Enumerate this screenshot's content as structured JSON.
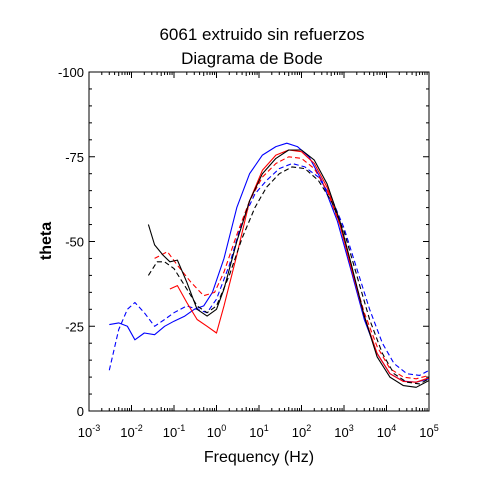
{
  "chart_data": {
    "type": "line",
    "title": "6061 extruido sin refuerzos",
    "subtitle": "Diagrama de Bode",
    "xlabel": "Frequency (Hz)",
    "ylabel": "theta",
    "x_scale": "log",
    "xlim": [
      0.001,
      100000
    ],
    "ylim": [
      0,
      -100
    ],
    "x_ticks": [
      {
        "value": 0.001,
        "base": "10",
        "exp": "-3"
      },
      {
        "value": 0.01,
        "base": "10",
        "exp": "-2"
      },
      {
        "value": 0.1,
        "base": "10",
        "exp": "-1"
      },
      {
        "value": 1,
        "base": "10",
        "exp": "0"
      },
      {
        "value": 10,
        "base": "10",
        "exp": "1"
      },
      {
        "value": 100,
        "base": "10",
        "exp": "2"
      },
      {
        "value": 1000,
        "base": "10",
        "exp": "3"
      },
      {
        "value": 10000,
        "base": "10",
        "exp": "4"
      },
      {
        "value": 100000,
        "base": "10",
        "exp": "5"
      }
    ],
    "y_ticks": [
      {
        "value": 0,
        "label": "0"
      },
      {
        "value": -25,
        "label": "-25"
      },
      {
        "value": -50,
        "label": "-50"
      },
      {
        "value": -75,
        "label": "-75"
      },
      {
        "value": -100,
        "label": "-100"
      }
    ],
    "grid": false,
    "series": [
      {
        "color": "#0000ff",
        "dash": "solid",
        "points": [
          [
            0.003,
            -25.5
          ],
          [
            0.005,
            -26
          ],
          [
            0.008,
            -25
          ],
          [
            0.012,
            -21
          ],
          [
            0.02,
            -23
          ],
          [
            0.035,
            -22.5
          ],
          [
            0.06,
            -25
          ],
          [
            0.1,
            -26.5
          ],
          [
            0.18,
            -28
          ],
          [
            0.3,
            -30
          ],
          [
            0.5,
            -31
          ],
          [
            0.8,
            -35
          ],
          [
            1.5,
            -45
          ],
          [
            3,
            -60
          ],
          [
            6,
            -70
          ],
          [
            12,
            -75.5
          ],
          [
            25,
            -78
          ],
          [
            45,
            -79
          ],
          [
            80,
            -78
          ],
          [
            150,
            -75
          ],
          [
            300,
            -68
          ],
          [
            700,
            -56
          ],
          [
            1500,
            -41
          ],
          [
            3000,
            -27
          ],
          [
            6000,
            -17
          ],
          [
            12000,
            -11
          ],
          [
            25000,
            -8.8
          ],
          [
            50000,
            -8.5
          ],
          [
            100000,
            -9.5
          ]
        ]
      },
      {
        "color": "#0000ff",
        "dash": "dashed",
        "points": [
          [
            0.003,
            -12
          ],
          [
            0.005,
            -24
          ],
          [
            0.008,
            -30
          ],
          [
            0.012,
            -32
          ],
          [
            0.02,
            -29
          ],
          [
            0.035,
            -25
          ],
          [
            0.06,
            -27
          ],
          [
            0.1,
            -29
          ],
          [
            0.2,
            -31
          ],
          [
            0.35,
            -30
          ],
          [
            0.6,
            -29
          ],
          [
            1,
            -33
          ],
          [
            2,
            -43
          ],
          [
            4,
            -56
          ],
          [
            8,
            -64
          ],
          [
            15,
            -68
          ],
          [
            30,
            -71.5
          ],
          [
            60,
            -73
          ],
          [
            120,
            -72
          ],
          [
            250,
            -69
          ],
          [
            500,
            -63
          ],
          [
            1000,
            -54
          ],
          [
            2000,
            -42
          ],
          [
            4000,
            -30
          ],
          [
            8000,
            -20
          ],
          [
            15000,
            -14
          ],
          [
            30000,
            -11
          ],
          [
            60000,
            -10.5
          ],
          [
            100000,
            -12
          ]
        ]
      },
      {
        "color": "#ff0000",
        "dash": "solid",
        "points": [
          [
            0.08,
            -36
          ],
          [
            0.12,
            -37
          ],
          [
            0.2,
            -32
          ],
          [
            0.35,
            -27
          ],
          [
            0.6,
            -25
          ],
          [
            1,
            -23
          ],
          [
            1.5,
            -31
          ],
          [
            3,
            -46
          ],
          [
            6,
            -62
          ],
          [
            12,
            -71
          ],
          [
            25,
            -75.5
          ],
          [
            50,
            -77
          ],
          [
            100,
            -76.5
          ],
          [
            200,
            -73
          ],
          [
            400,
            -66
          ],
          [
            800,
            -55
          ],
          [
            1500,
            -42
          ],
          [
            3000,
            -28
          ],
          [
            6000,
            -17
          ],
          [
            12000,
            -11
          ],
          [
            25000,
            -8.7
          ],
          [
            50000,
            -8.5
          ],
          [
            100000,
            -9.8
          ]
        ]
      },
      {
        "color": "#ff0000",
        "dash": "dashed",
        "points": [
          [
            0.035,
            -45
          ],
          [
            0.07,
            -47
          ],
          [
            0.12,
            -43
          ],
          [
            0.25,
            -38
          ],
          [
            0.5,
            -34
          ],
          [
            0.9,
            -35
          ],
          [
            1.5,
            -41
          ],
          [
            3,
            -52
          ],
          [
            6,
            -62
          ],
          [
            12,
            -69
          ],
          [
            25,
            -73
          ],
          [
            50,
            -75
          ],
          [
            100,
            -74.5
          ],
          [
            200,
            -71.5
          ],
          [
            400,
            -65
          ],
          [
            800,
            -55
          ],
          [
            1500,
            -42
          ],
          [
            3000,
            -29
          ],
          [
            6000,
            -19
          ],
          [
            12000,
            -12.5
          ],
          [
            25000,
            -10
          ],
          [
            50000,
            -9.5
          ],
          [
            100000,
            -10.5
          ]
        ]
      },
      {
        "color": "#000000",
        "dash": "solid",
        "points": [
          [
            0.025,
            -55
          ],
          [
            0.035,
            -49
          ],
          [
            0.055,
            -46
          ],
          [
            0.08,
            -44
          ],
          [
            0.12,
            -44.5
          ],
          [
            0.2,
            -38
          ],
          [
            0.35,
            -30
          ],
          [
            0.6,
            -28
          ],
          [
            1,
            -30
          ],
          [
            1.5,
            -36
          ],
          [
            3,
            -50
          ],
          [
            6,
            -62
          ],
          [
            12,
            -70
          ],
          [
            25,
            -74.5
          ],
          [
            50,
            -77
          ],
          [
            100,
            -77
          ],
          [
            200,
            -74
          ],
          [
            400,
            -67
          ],
          [
            800,
            -56
          ],
          [
            1500,
            -43
          ],
          [
            3000,
            -28
          ],
          [
            6000,
            -16
          ],
          [
            12000,
            -10
          ],
          [
            25000,
            -7.5
          ],
          [
            50000,
            -7
          ],
          [
            100000,
            -9
          ]
        ]
      },
      {
        "color": "#000000",
        "dash": "dashed",
        "points": [
          [
            0.025,
            -40
          ],
          [
            0.04,
            -44
          ],
          [
            0.06,
            -44
          ],
          [
            0.1,
            -42
          ],
          [
            0.2,
            -36
          ],
          [
            0.35,
            -31
          ],
          [
            0.6,
            -29
          ],
          [
            1,
            -31
          ],
          [
            2,
            -40
          ],
          [
            4,
            -51
          ],
          [
            8,
            -60
          ],
          [
            15,
            -66
          ],
          [
            30,
            -70
          ],
          [
            60,
            -72
          ],
          [
            120,
            -71.5
          ],
          [
            250,
            -68
          ],
          [
            500,
            -62
          ],
          [
            1000,
            -53
          ],
          [
            2000,
            -40
          ],
          [
            4000,
            -27
          ],
          [
            8000,
            -17
          ],
          [
            15000,
            -11
          ],
          [
            30000,
            -8.5
          ],
          [
            60000,
            -8
          ],
          [
            100000,
            -9.5
          ]
        ]
      }
    ]
  }
}
